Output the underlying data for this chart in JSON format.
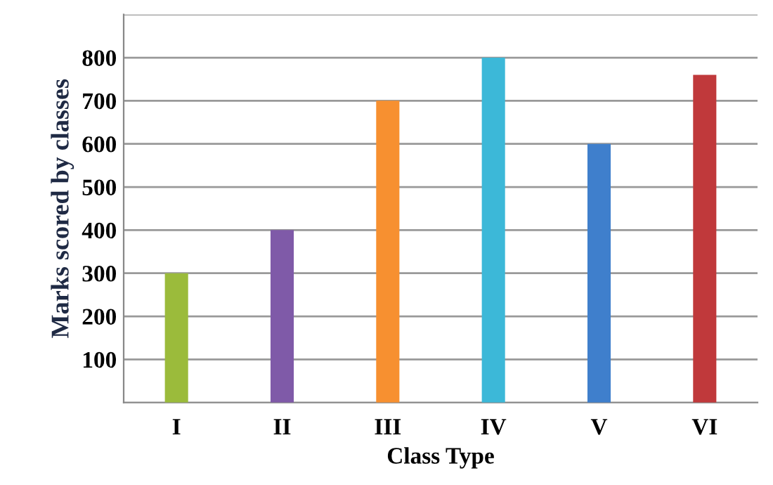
{
  "chart_data": {
    "type": "bar",
    "xlabel": "Class Type",
    "ylabel": "Marks scored by classes",
    "categories": [
      "I",
      "II",
      "III",
      "IV",
      "V",
      "VI"
    ],
    "values": [
      300,
      400,
      700,
      800,
      600,
      760
    ],
    "colors": [
      "#9bbb3b",
      "#7f5aa8",
      "#f79030",
      "#3cb8d8",
      "#3f7fcc",
      "#c0393b"
    ],
    "ylim": [
      0,
      900
    ],
    "yticks": [
      100,
      200,
      300,
      400,
      500,
      600,
      700,
      800,
      {
        "value": 900,
        "label": null
      }
    ],
    "grid": "y"
  }
}
